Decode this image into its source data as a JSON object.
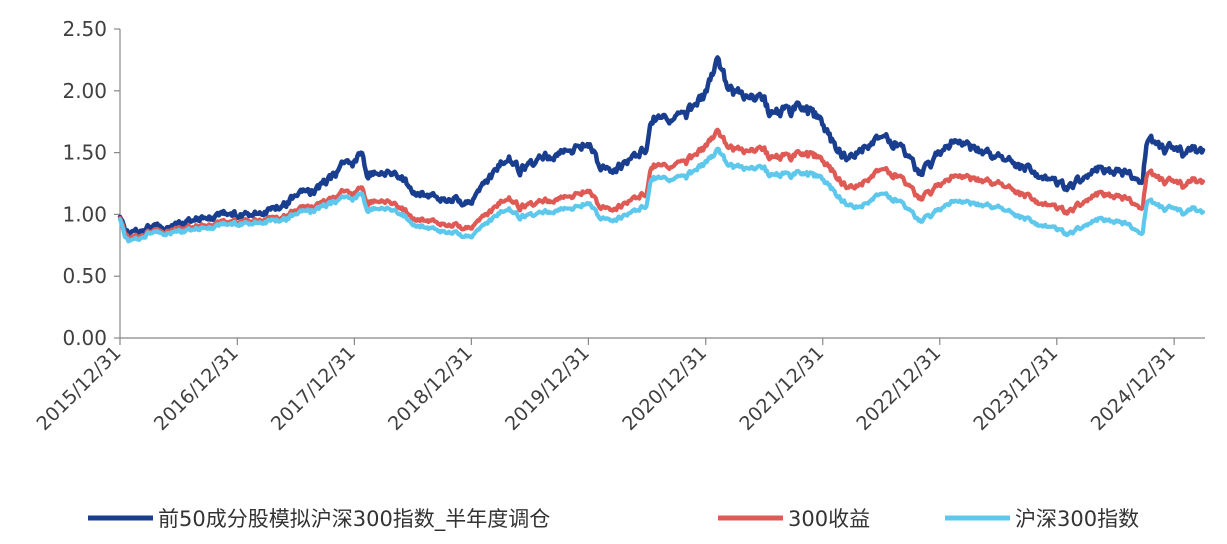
{
  "chart_data": {
    "type": "line",
    "x_ticks": [
      "2015/12/31",
      "2016/12/31",
      "2017/12/31",
      "2018/12/31",
      "2019/12/31",
      "2020/12/31",
      "2021/12/31",
      "2022/12/31",
      "2023/12/31",
      "2024/12/31"
    ],
    "y_ticks": [
      "0.00",
      "0.50",
      "1.00",
      "1.50",
      "2.00",
      "2.50"
    ],
    "ylim": [
      0,
      2.5
    ],
    "x_start": "2015/12/31",
    "x_end": "2025/03/31",
    "grid": false,
    "legend_position": "bottom",
    "series": [
      {
        "name": "前50成分股模拟沪深300指数_半年度调仓",
        "color": "#1a3e8f",
        "points": [
          [
            "2015/12/31",
            0.98
          ],
          [
            "2016/01/15",
            0.88
          ],
          [
            "2016/01/29",
            0.84
          ],
          [
            "2016/02/29",
            0.86
          ],
          [
            "2016/03/31",
            0.9
          ],
          [
            "2016/05/31",
            0.9
          ],
          [
            "2016/08/31",
            0.96
          ],
          [
            "2016/10/31",
            0.98
          ],
          [
            "2016/11/30",
            1.02
          ],
          [
            "2016/12/31",
            0.99
          ],
          [
            "2017/03/31",
            1.02
          ],
          [
            "2017/05/31",
            1.08
          ],
          [
            "2017/06/30",
            1.15
          ],
          [
            "2017/08/31",
            1.2
          ],
          [
            "2017/10/31",
            1.32
          ],
          [
            "2017/11/20",
            1.43
          ],
          [
            "2017/12/31",
            1.41
          ],
          [
            "2018/01/24",
            1.5
          ],
          [
            "2018/02/09",
            1.33
          ],
          [
            "2018/03/31",
            1.35
          ],
          [
            "2018/05/31",
            1.3
          ],
          [
            "2018/06/30",
            1.2
          ],
          [
            "2018/08/31",
            1.14
          ],
          [
            "2018/10/31",
            1.13
          ],
          [
            "2018/12/31",
            1.08
          ],
          [
            "2019/02/28",
            1.3
          ],
          [
            "2019/04/19",
            1.48
          ],
          [
            "2019/05/31",
            1.36
          ],
          [
            "2019/07/31",
            1.45
          ],
          [
            "2019/09/30",
            1.48
          ],
          [
            "2019/11/30",
            1.52
          ],
          [
            "2019/12/31",
            1.58
          ],
          [
            "2020/02/03",
            1.4
          ],
          [
            "2020/03/23",
            1.37
          ],
          [
            "2020/05/31",
            1.45
          ],
          [
            "2020/06/30",
            1.55
          ],
          [
            "2020/07/13",
            1.78
          ],
          [
            "2020/08/31",
            1.76
          ],
          [
            "2020/10/31",
            1.8
          ],
          [
            "2020/12/31",
            1.98
          ],
          [
            "2021/01/29",
            2.22
          ],
          [
            "2021/02/10",
            2.3
          ],
          [
            "2021/03/09",
            1.98
          ],
          [
            "2021/04/30",
            1.97
          ],
          [
            "2021/06/30",
            1.92
          ],
          [
            "2021/07/28",
            1.8
          ],
          [
            "2021/09/30",
            1.85
          ],
          [
            "2021/11/30",
            1.82
          ],
          [
            "2021/12/31",
            1.74
          ],
          [
            "2022/01/28",
            1.6
          ],
          [
            "2022/03/15",
            1.45
          ],
          [
            "2022/04/26",
            1.52
          ],
          [
            "2022/06/30",
            1.65
          ],
          [
            "2022/08/31",
            1.55
          ],
          [
            "2022/10/31",
            1.32
          ],
          [
            "2022/12/31",
            1.5
          ],
          [
            "2023/01/31",
            1.58
          ],
          [
            "2023/04/30",
            1.52
          ],
          [
            "2023/06/30",
            1.45
          ],
          [
            "2023/08/31",
            1.4
          ],
          [
            "2023/10/31",
            1.32
          ],
          [
            "2023/12/31",
            1.25
          ],
          [
            "2024/02/05",
            1.22
          ],
          [
            "2024/03/31",
            1.32
          ],
          [
            "2024/05/20",
            1.38
          ],
          [
            "2024/07/31",
            1.32
          ],
          [
            "2024/09/23",
            1.28
          ],
          [
            "2024/10/08",
            1.62
          ],
          [
            "2024/11/30",
            1.52
          ],
          [
            "2024/12/31",
            1.55
          ],
          [
            "2025/01/31",
            1.48
          ],
          [
            "2025/02/28",
            1.53
          ],
          [
            "2025/03/31",
            1.48
          ]
        ]
      },
      {
        "name": "300收益",
        "color": "#e05a55",
        "points": [
          [
            "2015/12/31",
            0.97
          ],
          [
            "2016/01/15",
            0.85
          ],
          [
            "2016/01/29",
            0.8
          ],
          [
            "2016/02/29",
            0.82
          ],
          [
            "2016/03/31",
            0.86
          ],
          [
            "2016/05/31",
            0.87
          ],
          [
            "2016/08/31",
            0.9
          ],
          [
            "2016/10/31",
            0.92
          ],
          [
            "2016/11/30",
            0.95
          ],
          [
            "2016/12/31",
            0.94
          ],
          [
            "2017/03/31",
            0.96
          ],
          [
            "2017/05/31",
            0.98
          ],
          [
            "2017/06/30",
            1.03
          ],
          [
            "2017/08/31",
            1.07
          ],
          [
            "2017/10/31",
            1.13
          ],
          [
            "2017/11/20",
            1.2
          ],
          [
            "2017/12/31",
            1.16
          ],
          [
            "2018/01/24",
            1.22
          ],
          [
            "2018/02/09",
            1.1
          ],
          [
            "2018/03/31",
            1.12
          ],
          [
            "2018/05/31",
            1.05
          ],
          [
            "2018/06/30",
            0.98
          ],
          [
            "2018/08/31",
            0.94
          ],
          [
            "2018/10/31",
            0.92
          ],
          [
            "2018/12/31",
            0.88
          ],
          [
            "2019/02/28",
            1.02
          ],
          [
            "2019/04/19",
            1.15
          ],
          [
            "2019/05/31",
            1.06
          ],
          [
            "2019/07/31",
            1.1
          ],
          [
            "2019/09/30",
            1.12
          ],
          [
            "2019/11/30",
            1.15
          ],
          [
            "2019/12/31",
            1.2
          ],
          [
            "2020/02/03",
            1.07
          ],
          [
            "2020/03/23",
            1.05
          ],
          [
            "2020/05/31",
            1.12
          ],
          [
            "2020/06/30",
            1.18
          ],
          [
            "2020/07/13",
            1.4
          ],
          [
            "2020/08/31",
            1.38
          ],
          [
            "2020/10/31",
            1.42
          ],
          [
            "2020/12/31",
            1.55
          ],
          [
            "2021/01/29",
            1.66
          ],
          [
            "2021/02/10",
            1.7
          ],
          [
            "2021/03/09",
            1.52
          ],
          [
            "2021/04/30",
            1.52
          ],
          [
            "2021/06/30",
            1.52
          ],
          [
            "2021/07/28",
            1.45
          ],
          [
            "2021/09/30",
            1.47
          ],
          [
            "2021/11/30",
            1.48
          ],
          [
            "2021/12/31",
            1.44
          ],
          [
            "2022/01/28",
            1.36
          ],
          [
            "2022/03/15",
            1.22
          ],
          [
            "2022/04/26",
            1.24
          ],
          [
            "2022/06/30",
            1.38
          ],
          [
            "2022/08/31",
            1.3
          ],
          [
            "2022/10/31",
            1.12
          ],
          [
            "2022/12/31",
            1.24
          ],
          [
            "2023/01/31",
            1.3
          ],
          [
            "2023/04/30",
            1.28
          ],
          [
            "2023/06/30",
            1.24
          ],
          [
            "2023/08/31",
            1.18
          ],
          [
            "2023/10/31",
            1.1
          ],
          [
            "2023/12/31",
            1.05
          ],
          [
            "2024/02/05",
            1.02
          ],
          [
            "2024/03/31",
            1.12
          ],
          [
            "2024/05/20",
            1.18
          ],
          [
            "2024/07/31",
            1.12
          ],
          [
            "2024/09/23",
            1.06
          ],
          [
            "2024/10/08",
            1.35
          ],
          [
            "2024/11/30",
            1.26
          ],
          [
            "2024/12/31",
            1.28
          ],
          [
            "2025/01/31",
            1.22
          ],
          [
            "2025/02/28",
            1.28
          ],
          [
            "2025/03/31",
            1.24
          ]
        ]
      },
      {
        "name": "沪深300指数",
        "color": "#5ec8ec",
        "points": [
          [
            "2015/12/31",
            0.96
          ],
          [
            "2016/01/15",
            0.82
          ],
          [
            "2016/01/29",
            0.78
          ],
          [
            "2016/02/29",
            0.8
          ],
          [
            "2016/03/31",
            0.85
          ],
          [
            "2016/05/31",
            0.85
          ],
          [
            "2016/08/31",
            0.88
          ],
          [
            "2016/10/31",
            0.9
          ],
          [
            "2016/11/30",
            0.93
          ],
          [
            "2016/12/31",
            0.92
          ],
          [
            "2017/03/31",
            0.94
          ],
          [
            "2017/05/31",
            0.96
          ],
          [
            "2017/06/30",
            1.0
          ],
          [
            "2017/08/31",
            1.04
          ],
          [
            "2017/10/31",
            1.1
          ],
          [
            "2017/11/20",
            1.15
          ],
          [
            "2017/12/31",
            1.12
          ],
          [
            "2018/01/24",
            1.17
          ],
          [
            "2018/02/09",
            1.04
          ],
          [
            "2018/03/31",
            1.06
          ],
          [
            "2018/05/31",
            1.0
          ],
          [
            "2018/06/30",
            0.93
          ],
          [
            "2018/08/31",
            0.88
          ],
          [
            "2018/10/31",
            0.86
          ],
          [
            "2018/12/31",
            0.81
          ],
          [
            "2019/02/28",
            0.95
          ],
          [
            "2019/04/19",
            1.06
          ],
          [
            "2019/05/31",
            0.98
          ],
          [
            "2019/07/31",
            1.01
          ],
          [
            "2019/09/30",
            1.03
          ],
          [
            "2019/11/30",
            1.05
          ],
          [
            "2019/12/31",
            1.1
          ],
          [
            "2020/02/03",
            0.98
          ],
          [
            "2020/03/23",
            0.96
          ],
          [
            "2020/05/31",
            1.02
          ],
          [
            "2020/06/30",
            1.08
          ],
          [
            "2020/07/13",
            1.3
          ],
          [
            "2020/08/31",
            1.28
          ],
          [
            "2020/10/31",
            1.3
          ],
          [
            "2020/12/31",
            1.42
          ],
          [
            "2021/01/29",
            1.5
          ],
          [
            "2021/02/10",
            1.55
          ],
          [
            "2021/03/09",
            1.38
          ],
          [
            "2021/04/30",
            1.38
          ],
          [
            "2021/06/30",
            1.37
          ],
          [
            "2021/07/28",
            1.31
          ],
          [
            "2021/09/30",
            1.32
          ],
          [
            "2021/11/30",
            1.32
          ],
          [
            "2021/12/31",
            1.29
          ],
          [
            "2022/01/28",
            1.21
          ],
          [
            "2022/03/15",
            1.08
          ],
          [
            "2022/04/26",
            1.06
          ],
          [
            "2022/06/30",
            1.18
          ],
          [
            "2022/08/31",
            1.1
          ],
          [
            "2022/10/31",
            0.94
          ],
          [
            "2022/12/31",
            1.04
          ],
          [
            "2023/01/31",
            1.1
          ],
          [
            "2023/04/30",
            1.08
          ],
          [
            "2023/06/30",
            1.05
          ],
          [
            "2023/08/31",
            0.99
          ],
          [
            "2023/10/31",
            0.92
          ],
          [
            "2023/12/31",
            0.88
          ],
          [
            "2024/02/05",
            0.84
          ],
          [
            "2024/03/31",
            0.92
          ],
          [
            "2024/05/20",
            0.97
          ],
          [
            "2024/07/31",
            0.92
          ],
          [
            "2024/09/23",
            0.85
          ],
          [
            "2024/10/08",
            1.12
          ],
          [
            "2024/11/30",
            1.04
          ],
          [
            "2024/12/31",
            1.06
          ],
          [
            "2025/01/31",
            1.0
          ],
          [
            "2025/02/28",
            1.05
          ],
          [
            "2025/03/31",
            1.0
          ]
        ]
      }
    ]
  }
}
